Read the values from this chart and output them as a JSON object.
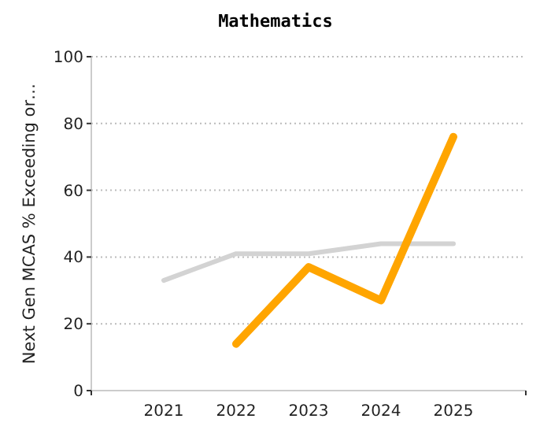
{
  "chart_data": {
    "type": "line",
    "title": "Mathematics",
    "ylabel": "Next Gen MCAS % Exceeding or…",
    "categories": [
      "2021",
      "2022",
      "2023",
      "2024",
      "2025"
    ],
    "series": [
      {
        "color": "#d3d3d3",
        "values": [
          33,
          41,
          41,
          44,
          44
        ]
      },
      {
        "color": "#ffa500",
        "values": [
          null,
          14,
          37,
          27,
          76
        ]
      }
    ],
    "ylim": [
      0,
      100
    ],
    "yticks": [
      0,
      20,
      40,
      60,
      80,
      100
    ],
    "grid": "y",
    "marker": "none",
    "line_style": "solid"
  }
}
